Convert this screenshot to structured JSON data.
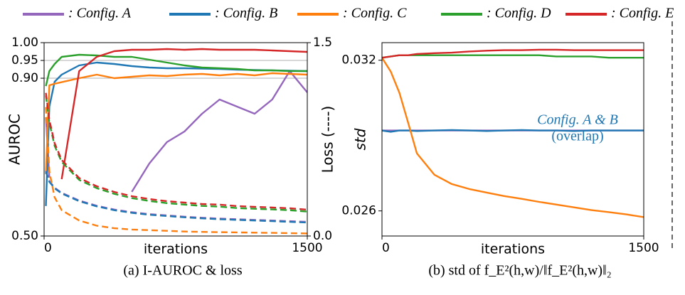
{
  "chart_data": [
    {
      "type": "line",
      "subtitle": "(a) I-AUROC & loss",
      "xlabel": "iterations",
      "ylabel": "AUROC",
      "y2label": "Loss (----)",
      "x": [
        10,
        30,
        60,
        100,
        200,
        300,
        400,
        500,
        600,
        700,
        800,
        900,
        1000,
        1100,
        1200,
        1300,
        1400,
        1500
      ],
      "xlim": [
        0,
        1500
      ],
      "xticks": [
        0,
        1500
      ],
      "ylim": [
        0.5,
        1.0
      ],
      "yscale": "broken",
      "yticks": [
        {
          "value": 0.5,
          "label": "0.50"
        },
        {
          "value": 0.9,
          "label": "0.90"
        },
        {
          "value": 0.95,
          "label": "0.95"
        },
        {
          "value": 1.0,
          "label": "1.00"
        }
      ],
      "y2lim": [
        0,
        1.5
      ],
      "y2ticks": [
        {
          "value": 0,
          "label": "0.0"
        },
        {
          "value": 1.5,
          "label": "1.5"
        }
      ],
      "grid": true,
      "series": [
        {
          "name": ": Config. A",
          "color": "#9467bd",
          "values": [
            0.801,
            0.648,
            null,
            null,
            null,
            null,
            null,
            0.612,
            0.684,
            0.738,
            0.765,
            0.81,
            0.846,
            0.828,
            0.81,
            0.846,
            0.92,
            0.864
          ]
        },
        {
          "name": ": Config. B",
          "color": "#1f77b4",
          "values": [
            0.576,
            0.828,
            0.891,
            0.91,
            0.936,
            0.944,
            0.94,
            0.934,
            0.93,
            0.928,
            0.928,
            0.927,
            0.926,
            0.924,
            0.923,
            0.922,
            0.921,
            0.92
          ]
        },
        {
          "name": ": Config. C",
          "color": "#ff7f0e",
          "values": [
            0.657,
            0.882,
            0.886,
            0.89,
            0.9,
            0.91,
            0.9,
            0.904,
            0.908,
            0.906,
            0.91,
            0.912,
            0.908,
            0.912,
            0.908,
            0.914,
            0.912,
            0.91
          ]
        },
        {
          "name": ": Config. D",
          "color": "#2ca02c",
          "values": [
            0.88,
            0.92,
            0.94,
            0.96,
            0.966,
            0.964,
            0.96,
            0.96,
            0.952,
            0.944,
            0.936,
            0.93,
            0.928,
            0.926,
            0.922,
            0.922,
            0.92,
            0.92
          ]
        },
        {
          "name": ": Config. E",
          "color": "#d62728",
          "values": [
            null,
            null,
            null,
            0.644,
            0.92,
            0.96,
            0.976,
            0.98,
            0.98,
            0.982,
            0.98,
            0.982,
            0.98,
            0.98,
            0.98,
            0.978,
            0.976,
            0.974
          ]
        },
        {
          "color": "#9467bd",
          "axis": "y2",
          "dash": true,
          "values": [
            0.505,
            0.425,
            0.375,
            0.335,
            0.275,
            0.235,
            0.205,
            0.185,
            0.17,
            0.16,
            0.15,
            0.142,
            0.135,
            0.13,
            0.125,
            0.12,
            0.115,
            0.11
          ]
        },
        {
          "color": "#1f77b4",
          "axis": "y2",
          "dash": true,
          "values": [
            0.5,
            0.42,
            0.37,
            0.33,
            0.27,
            0.23,
            0.2,
            0.18,
            0.165,
            0.155,
            0.145,
            0.137,
            0.13,
            0.125,
            0.12,
            0.115,
            0.11,
            0.105
          ]
        },
        {
          "color": "#ff7f0e",
          "axis": "y2",
          "dash": true,
          "values": [
            1.0,
            0.5,
            0.3,
            0.2,
            0.12,
            0.08,
            0.06,
            0.05,
            0.045,
            0.04,
            0.035,
            0.032,
            0.03,
            0.028,
            0.026,
            0.024,
            0.022,
            0.02
          ]
        },
        {
          "color": "#2ca02c",
          "axis": "y2",
          "dash": true,
          "values": [
            1.09,
            0.88,
            0.7,
            0.575,
            0.435,
            0.371,
            0.327,
            0.294,
            0.272,
            0.255,
            0.244,
            0.233,
            0.228,
            0.217,
            0.211,
            0.206,
            0.2,
            0.189
          ]
        },
        {
          "color": "#d62728",
          "axis": "y2",
          "dash": true,
          "values": [
            1.11,
            0.9,
            0.72,
            0.59,
            0.45,
            0.386,
            0.342,
            0.309,
            0.287,
            0.27,
            0.259,
            0.248,
            0.243,
            0.232,
            0.226,
            0.221,
            0.215,
            0.204
          ]
        }
      ]
    },
    {
      "type": "line",
      "subtitle": "(b) std of f_E²(h,w)/‖f_E²(h,w)‖₂",
      "xlabel": "iterations",
      "ylabel": "std",
      "annotations": [
        "Config. A & B",
        "(overlap)"
      ],
      "x": [
        0,
        50,
        100,
        150,
        200,
        300,
        400,
        500,
        600,
        700,
        800,
        900,
        1000,
        1100,
        1200,
        1300,
        1400,
        1500
      ],
      "xlim": [
        0,
        1500
      ],
      "xticks": [
        0,
        1500
      ],
      "ylim": [
        0.025,
        0.0327
      ],
      "yticks": [
        0.026,
        0.032
      ],
      "grid": false,
      "series": [
        {
          "color": "#9467bd",
          "values": [
            0.0292,
            0.0292,
            0.0292,
            0.0292,
            0.0292,
            0.0292,
            0.0292,
            0.0292,
            0.0292,
            0.0292,
            0.0292,
            0.0292,
            0.0292,
            0.0292,
            0.0292,
            0.0292,
            0.0292,
            0.0292
          ]
        },
        {
          "color": "#1f77b4",
          "values": [
            0.0292,
            0.02915,
            0.0292,
            0.0292,
            0.02918,
            0.0292,
            0.02922,
            0.0292,
            0.02918,
            0.0292,
            0.02922,
            0.0292,
            0.0292,
            0.02918,
            0.0292,
            0.0292,
            0.0292,
            0.0292
          ]
        },
        {
          "color": "#ff7f0e",
          "values": [
            0.0321,
            0.03155,
            0.0307,
            0.02951,
            0.02829,
            0.02744,
            0.02707,
            0.02687,
            0.02673,
            0.02659,
            0.02648,
            0.02636,
            0.02625,
            0.02614,
            0.02603,
            0.02595,
            0.02586,
            0.02575
          ]
        },
        {
          "color": "#2ca02c",
          "values": [
            0.0321,
            0.03215,
            0.0322,
            0.0322,
            0.0322,
            0.0322,
            0.0322,
            0.0322,
            0.0322,
            0.0322,
            0.0322,
            0.0322,
            0.03215,
            0.03215,
            0.03215,
            0.0321,
            0.0321,
            0.0321
          ]
        },
        {
          "color": "#d62728",
          "values": [
            0.0321,
            0.03215,
            0.0322,
            0.0322,
            0.03225,
            0.03228,
            0.0323,
            0.03235,
            0.03238,
            0.0324,
            0.0324,
            0.03242,
            0.03242,
            0.0324,
            0.0324,
            0.0324,
            0.0324,
            0.0324
          ]
        }
      ]
    }
  ]
}
